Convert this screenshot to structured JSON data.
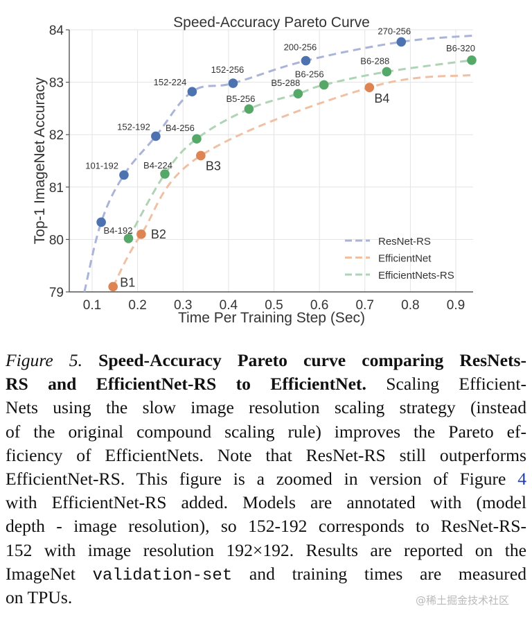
{
  "chart_data": {
    "type": "line",
    "title": "Speed-Accuracy Pareto Curve",
    "xlabel": "Time Per Training Step (Sec)",
    "ylabel": "Top-1 ImageNet Accuracy",
    "xlim": [
      0.05,
      0.94
    ],
    "ylim": [
      79,
      84
    ],
    "xticks": [
      "0.1",
      "0.2",
      "0.3",
      "0.4",
      "0.5",
      "0.6",
      "0.7",
      "0.8",
      "0.9"
    ],
    "yticks": [
      "79",
      "80",
      "81",
      "82",
      "83",
      "84"
    ],
    "grid": true,
    "legend_position": "lower-right",
    "series": [
      {
        "name": "ResNet-RS",
        "color": "#4c72b0",
        "line_color": "#a9b4d8",
        "curve_start": [
          0.083,
          79.0
        ],
        "curve_end": [
          0.94,
          83.89
        ],
        "points": [
          {
            "x": 0.12,
            "y": 80.33,
            "label": ""
          },
          {
            "x": 0.17,
            "y": 81.23,
            "label": "101-192"
          },
          {
            "x": 0.24,
            "y": 81.97,
            "label": "152-192"
          },
          {
            "x": 0.32,
            "y": 82.82,
            "label": "152-224"
          },
          {
            "x": 0.41,
            "y": 82.98,
            "label": "152-256"
          },
          {
            "x": 0.57,
            "y": 83.41,
            "label": "200-256"
          },
          {
            "x": 0.78,
            "y": 83.77,
            "label": "270-256"
          }
        ]
      },
      {
        "name": "EfficientNet",
        "color": "#dd8452",
        "line_color": "#efc0a3",
        "curve_start": null,
        "curve_end": [
          0.94,
          83.14
        ],
        "points": [
          {
            "x": 0.146,
            "y": 79.1,
            "label": "B1"
          },
          {
            "x": 0.208,
            "y": 80.1,
            "label": "B2"
          },
          {
            "x": 0.339,
            "y": 81.6,
            "label": "B3"
          },
          {
            "x": 0.71,
            "y": 82.9,
            "label": "B4"
          }
        ]
      },
      {
        "name": "EfficientNets-RS",
        "color": "#55a868",
        "line_color": "#aed3b5",
        "curve_start": null,
        "curve_end": null,
        "points": [
          {
            "x": 0.18,
            "y": 80.02,
            "label": "B4-192"
          },
          {
            "x": 0.26,
            "y": 81.25,
            "label": "B4-224"
          },
          {
            "x": 0.33,
            "y": 81.92,
            "label": "B4-256"
          },
          {
            "x": 0.445,
            "y": 82.49,
            "label": "B5-256"
          },
          {
            "x": 0.553,
            "y": 82.78,
            "label": "B5-288"
          },
          {
            "x": 0.61,
            "y": 82.95,
            "label": "B6-256"
          },
          {
            "x": 0.748,
            "y": 83.2,
            "label": "B6-288"
          },
          {
            "x": 0.935,
            "y": 83.42,
            "label": "B6-320"
          }
        ]
      }
    ]
  },
  "caption": {
    "lines": [
      [
        {
          "t": "Figure 5.",
          "s": "fig-label"
        },
        {
          "t": " "
        },
        {
          "t": "Speed-Accuracy Pareto curve comparing ResNets-",
          "s": "bold"
        }
      ],
      [
        {
          "t": "RS and EfficientNet-RS to EfficientNet.",
          "s": "bold"
        },
        {
          "t": "  Scaling Efficient-"
        }
      ],
      [
        {
          "t": "Nets using the slow image resolution scaling strategy (instead"
        }
      ],
      [
        {
          "t": "of the original compound scaling rule) improves the Pareto ef-"
        }
      ],
      [
        {
          "t": "ficiency of EfficientNets.  Note that ResNet-RS still outperforms"
        }
      ],
      [
        {
          "t": "EfficientNet-RS. This figure is a zoomed in version of Figure "
        },
        {
          "t": "4",
          "s": "link"
        }
      ],
      [
        {
          "t": "with EfficientNet-RS added.  Models are annotated with (model"
        }
      ],
      [
        {
          "t": "depth - image resolution), so 152-192 corresponds to ResNet-RS-"
        }
      ],
      [
        {
          "t": "152 with image resolution 192×192.  Results are reported on the"
        }
      ],
      [
        {
          "t": "ImageNet "
        },
        {
          "t": "validation-set",
          "s": "mono"
        },
        {
          "t": " and training times are measured"
        }
      ],
      [
        {
          "t": "on TPUs."
        }
      ]
    ]
  },
  "watermark": "@稀土掘金技术社区"
}
